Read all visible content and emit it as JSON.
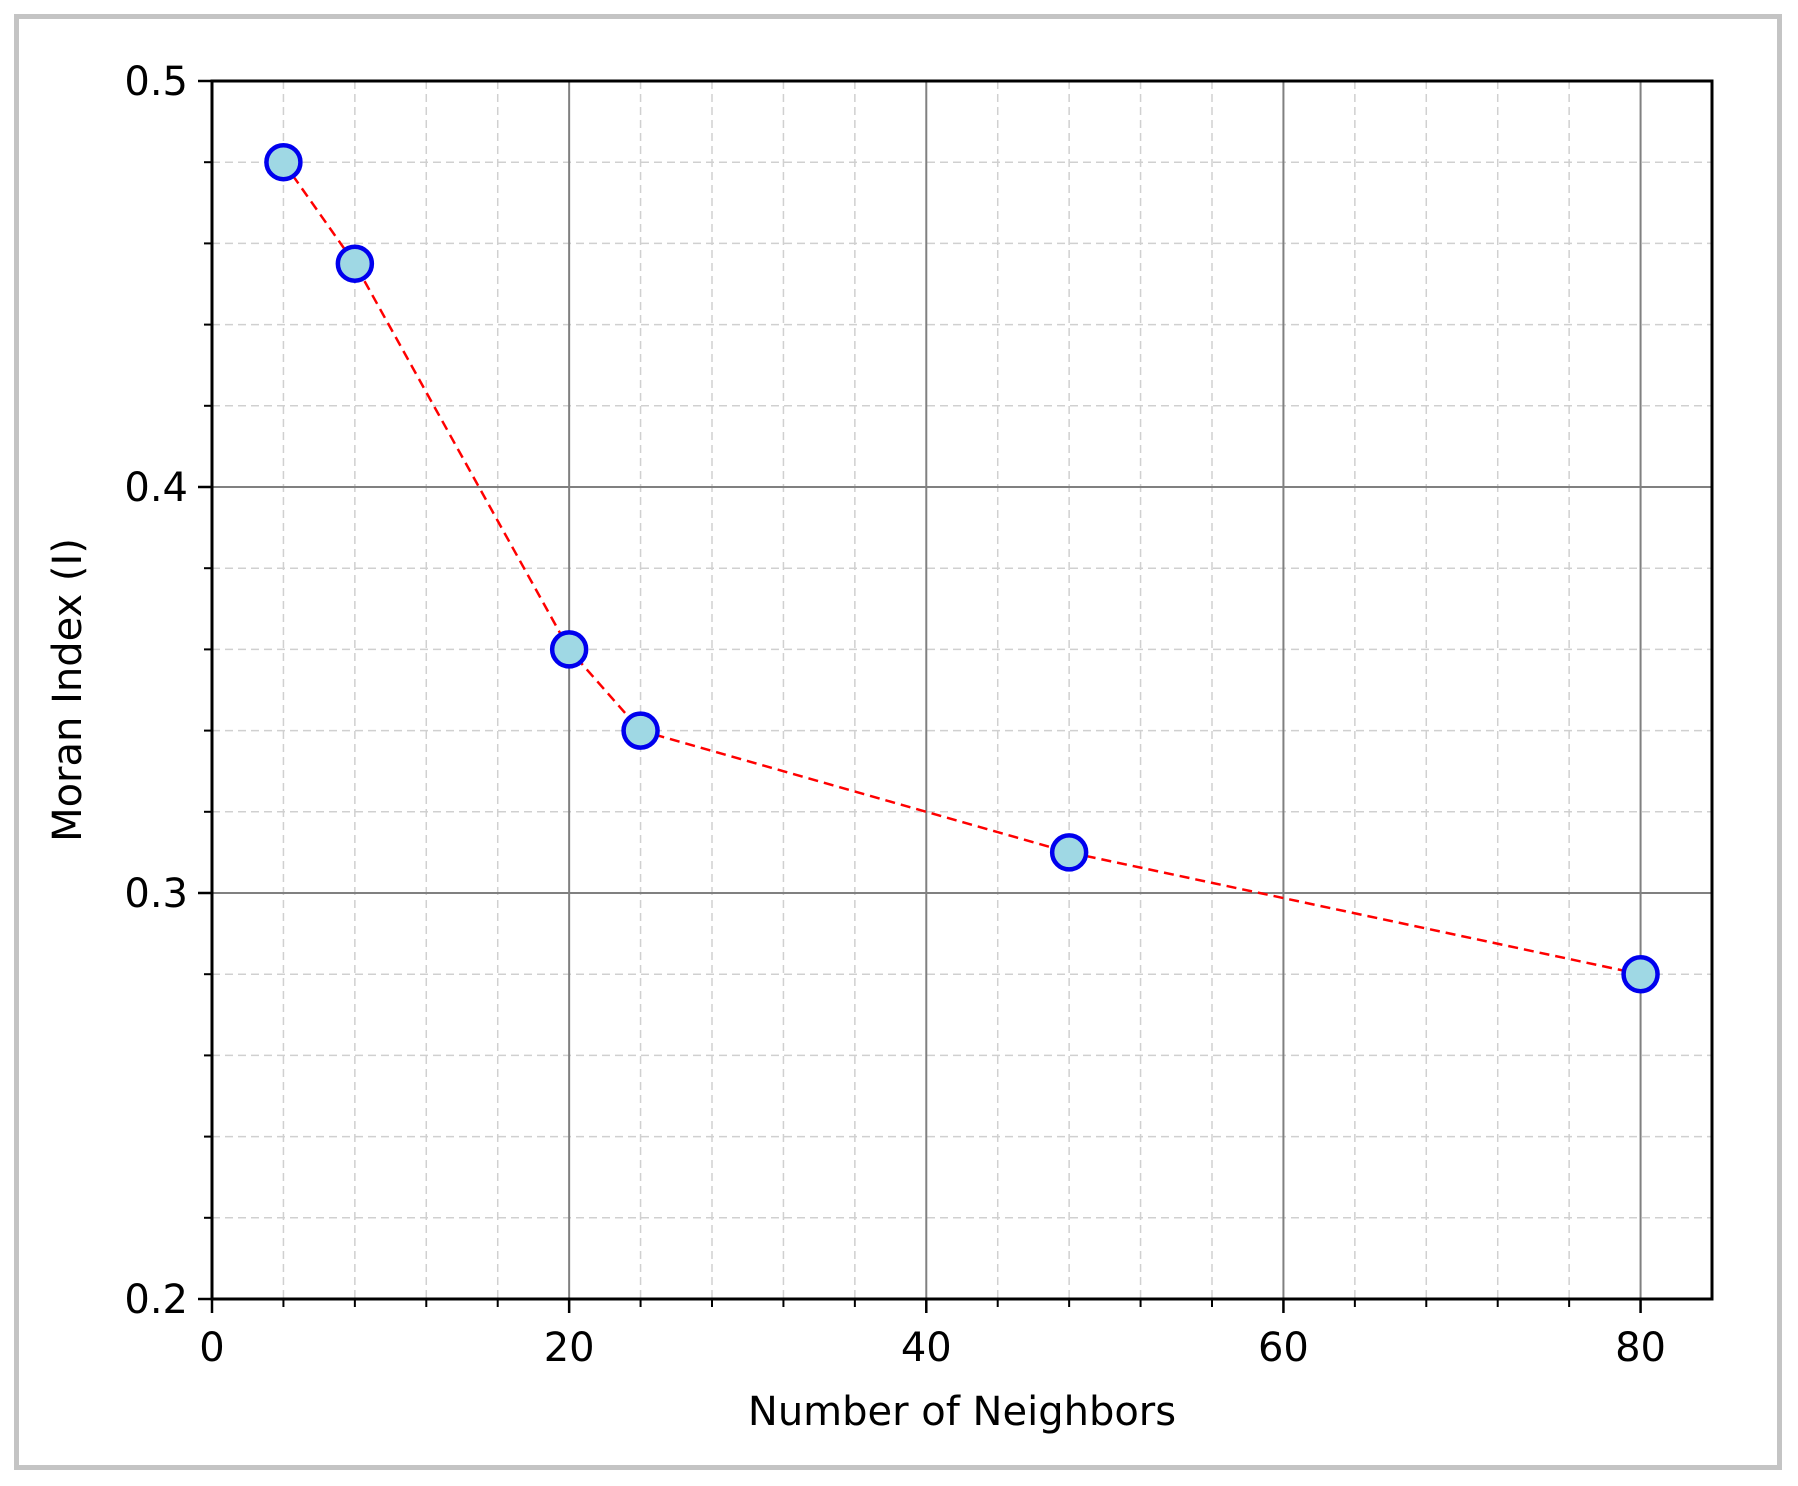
{
  "chart_data": {
    "type": "line",
    "xlabel": "Number of Neighbors",
    "ylabel": "Moran Index (I)",
    "xlim": [
      0,
      84
    ],
    "ylim": [
      0.2,
      0.5
    ],
    "x_ticks": [
      0,
      20,
      40,
      60,
      80
    ],
    "x_tick_labels": [
      "0",
      "20",
      "40",
      "60",
      "80"
    ],
    "x_minor_step": 4,
    "y_ticks": [
      0.2,
      0.3,
      0.4,
      0.5
    ],
    "y_tick_labels": [
      "0.2",
      "0.3",
      "0.4",
      "0.5"
    ],
    "y_minor_step": 0.02,
    "grid": true,
    "series": [
      {
        "x": [
          4,
          8,
          20,
          24,
          48,
          80
        ],
        "y": [
          0.48,
          0.455,
          0.36,
          0.34,
          0.31,
          0.28
        ],
        "line_color": "#ff0000",
        "line_style": "dashed",
        "marker_fill": "#9fd8e4",
        "marker_edge": "#0000ee"
      }
    ],
    "colors": {
      "major_grid": "#808080",
      "minor_grid": "#d0d0d0",
      "frame_border": "#c4c4c4"
    }
  }
}
